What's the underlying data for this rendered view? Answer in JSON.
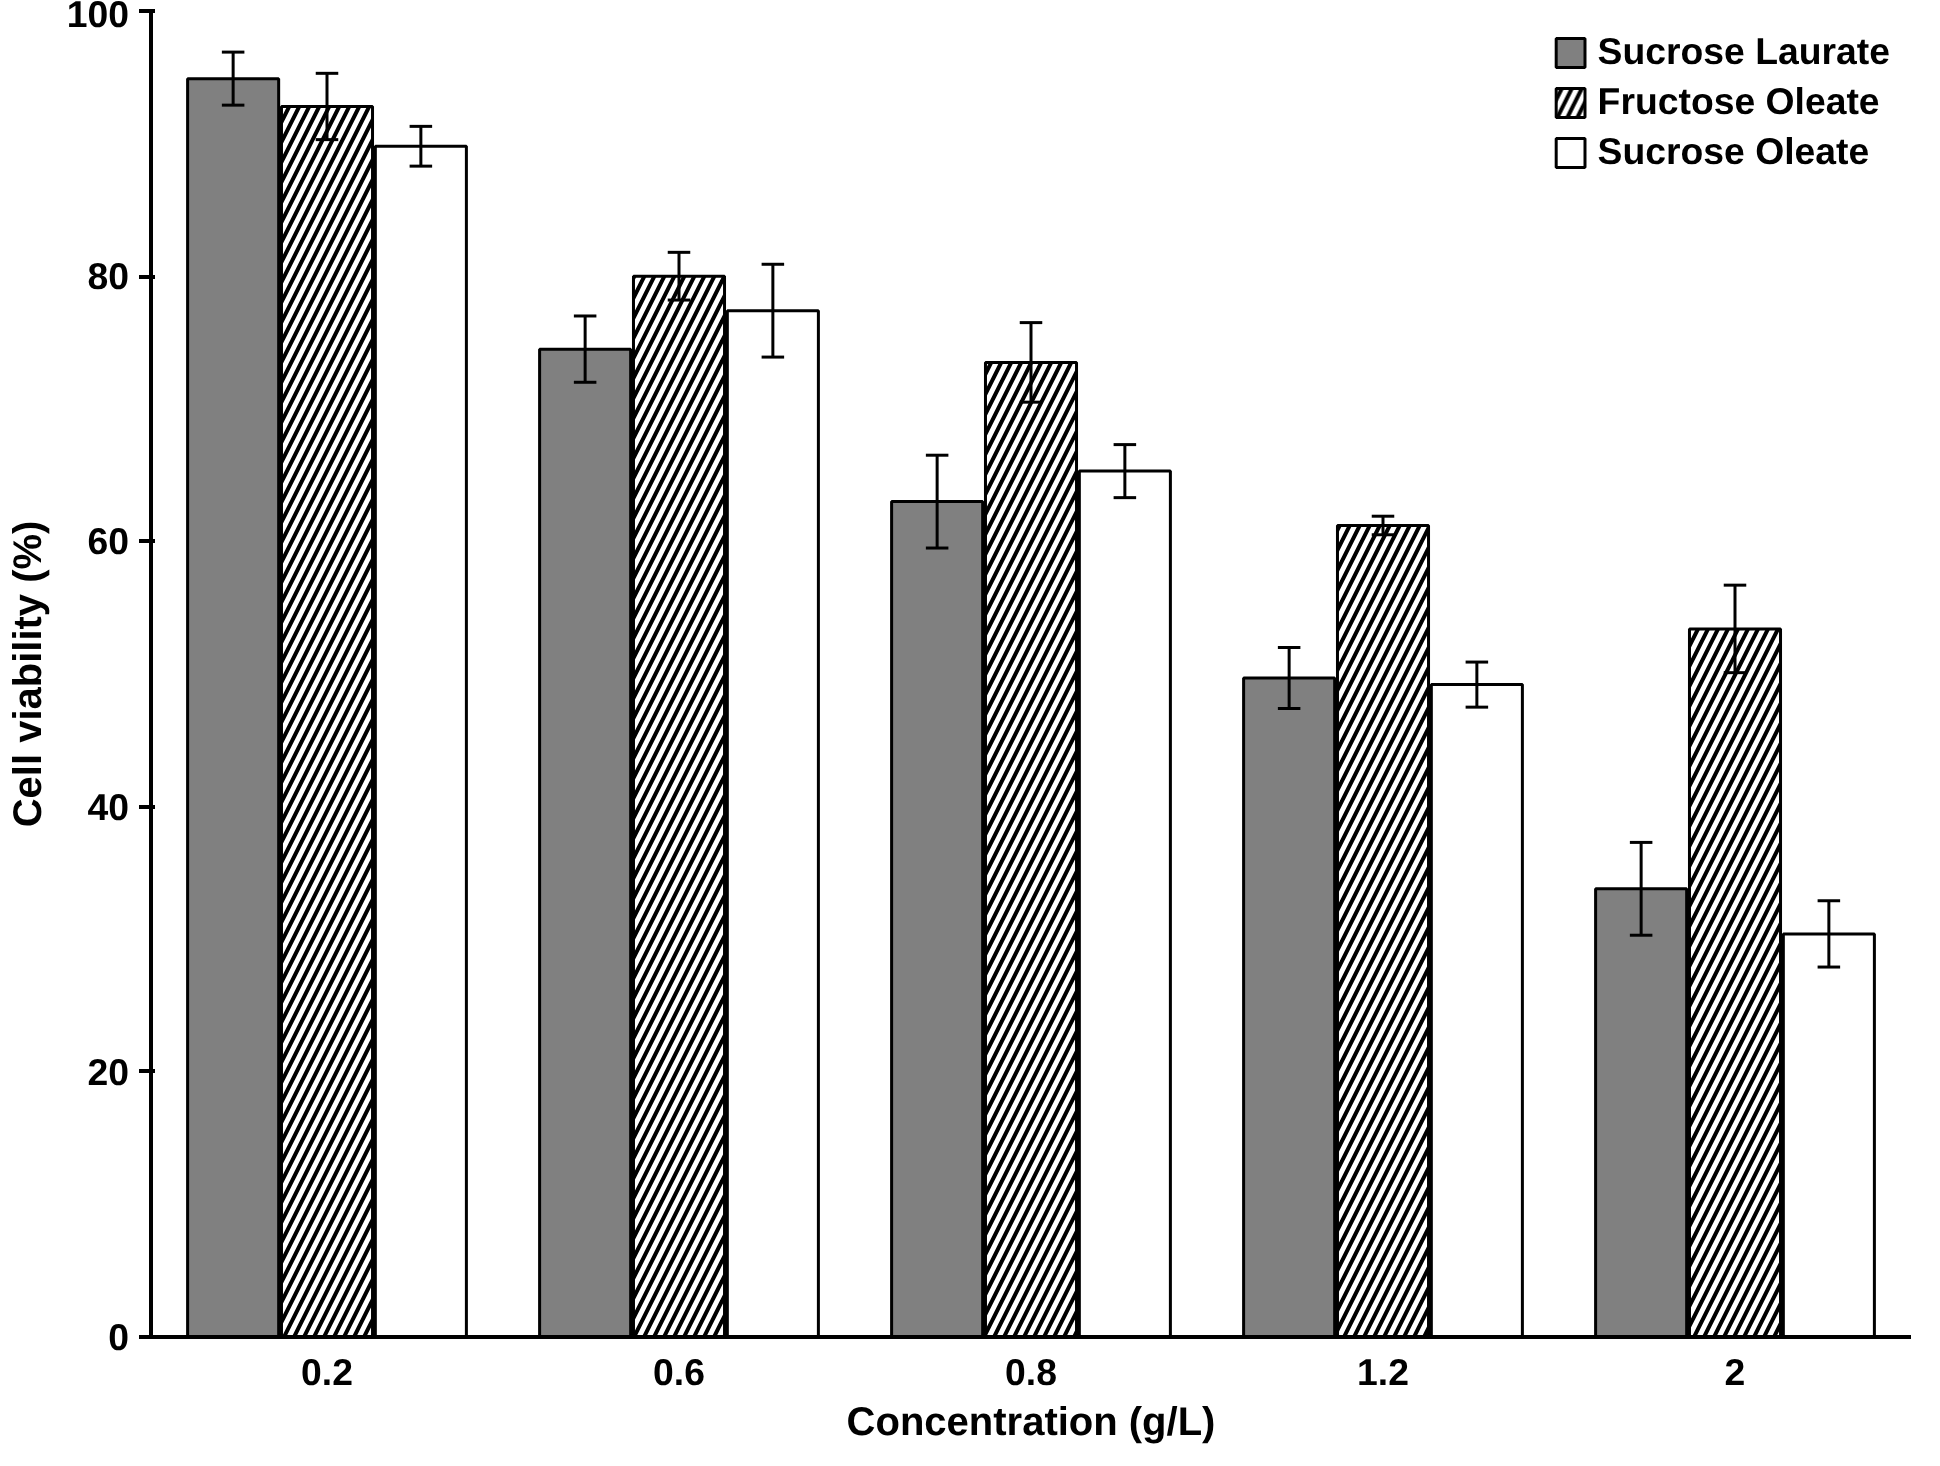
{
  "chart_data": {
    "type": "bar",
    "xlabel": "Concentration (g/L)",
    "ylabel": "Cell viability (%)",
    "categories": [
      "0.2",
      "0.6",
      "0.8",
      "1.2",
      "2"
    ],
    "series": [
      {
        "name": "Sucrose Laurate",
        "color": "#808080",
        "values": [
          94.9,
          74.5,
          63.0,
          49.7,
          33.8
        ],
        "errors": [
          2,
          2.5,
          3.5,
          2.3,
          3.5
        ]
      },
      {
        "name": "Fructose Oleate",
        "color": "#000000",
        "values": [
          92.8,
          80.0,
          73.5,
          61.2,
          53.4
        ],
        "errors": [
          2.5,
          1.8,
          3,
          0.7,
          3.3
        ]
      },
      {
        "name": "Sucrose Oleate",
        "color": "#ffffff",
        "values": [
          89.8,
          77.4,
          65.3,
          49.2,
          30.4
        ],
        "errors": [
          1.5,
          3.5,
          2,
          1.7,
          2.5
        ]
      }
    ],
    "ylim": [
      0,
      100
    ],
    "yticks": [
      0,
      20,
      40,
      60,
      80,
      100
    ],
    "grid": false,
    "legend": "top right"
  }
}
